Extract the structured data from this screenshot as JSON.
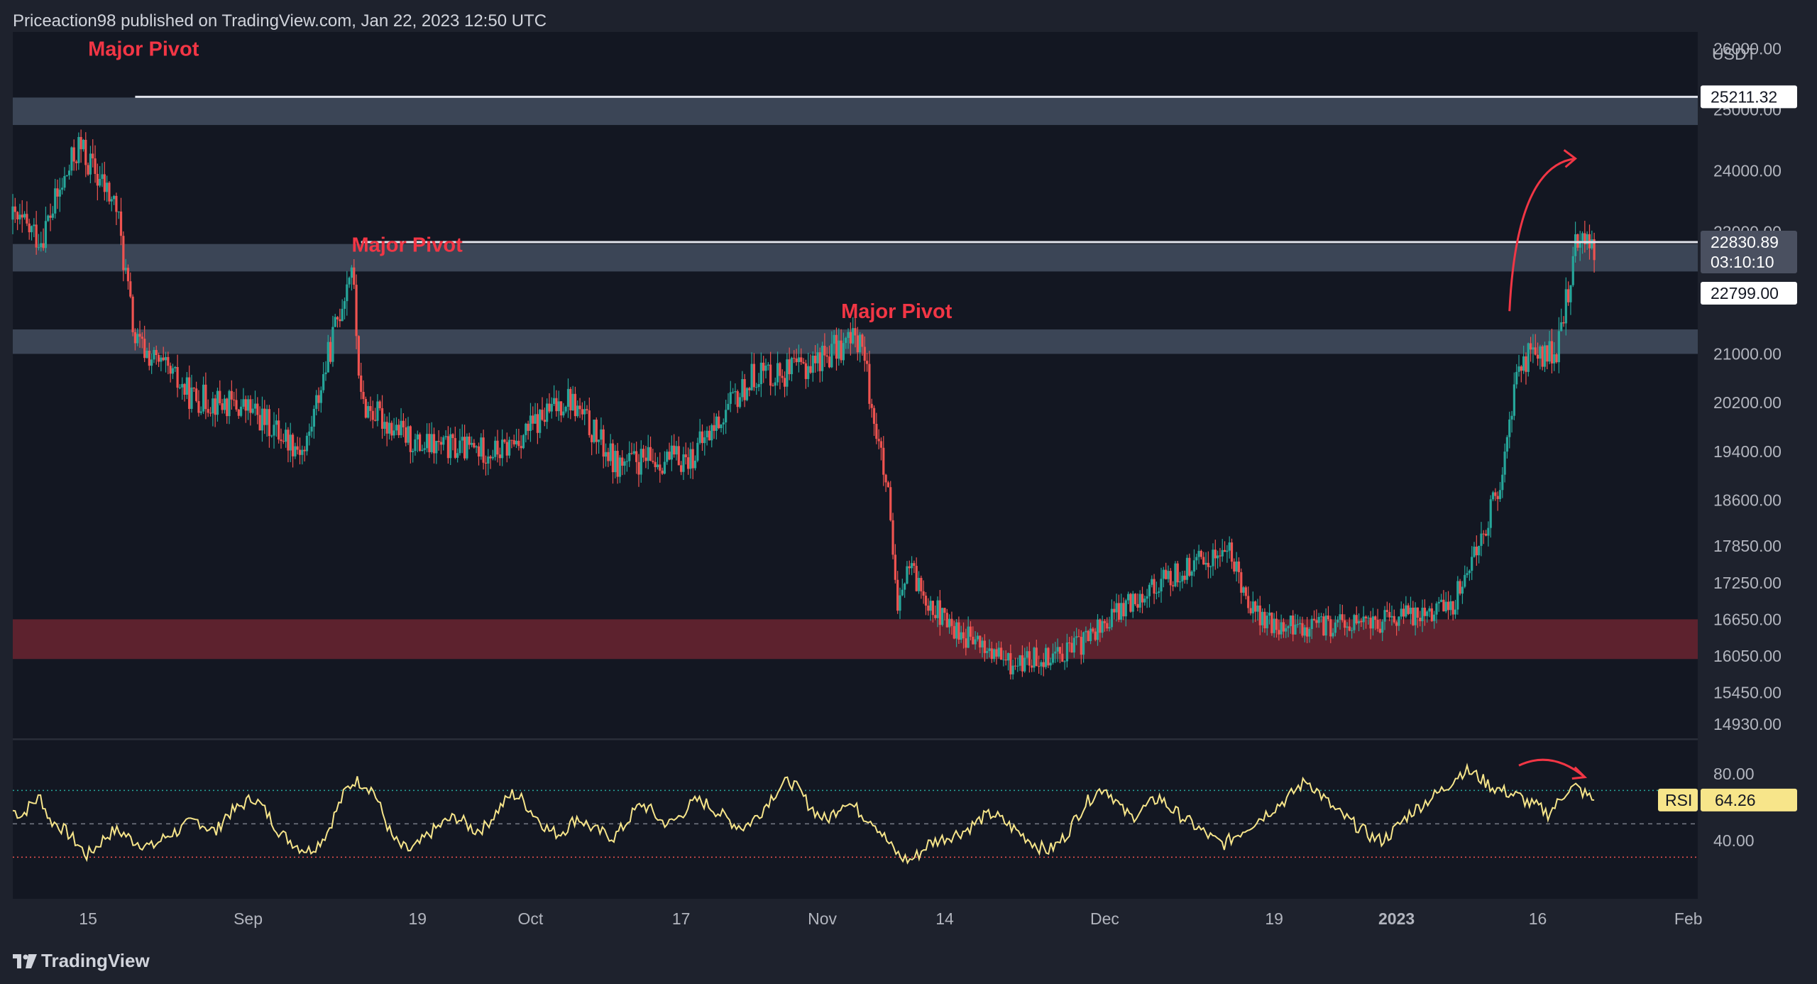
{
  "header": {
    "attribution": "Priceaction98 published on TradingView.com, Jan 22, 2023 12:50 UTC"
  },
  "footer": {
    "brand": "TradingView",
    "logo_icon": "tradingview-logo-icon"
  },
  "colors": {
    "background": "#1e222d",
    "pane_background": "#131722",
    "candle_up": "#26a69a",
    "candle_down": "#ef5350",
    "pivot_label": "#f23645",
    "resistance_zone": "#4a5568",
    "support_zone": "#6b2530",
    "rsi_line": "#f7e58a",
    "rsi_upper_band": "#26a69a",
    "rsi_lower_band": "#ef5350",
    "arrow": "#f23645"
  },
  "chart_data": {
    "type": "candlestick",
    "symbol_quote": "USDT",
    "price_axis": {
      "label": "USDT",
      "ticks": [
        26000,
        25000,
        24000,
        23000,
        21000,
        20200,
        19400,
        18600,
        17850,
        17250,
        16650,
        16050,
        15450,
        14930
      ],
      "tick_labels": [
        "26000.00",
        "25000.00",
        "24000.00",
        "23000.00",
        "21000.00",
        "20200.00",
        "19400.00",
        "18600.00",
        "17850.00",
        "17250.00",
        "16650.00",
        "16050.00",
        "15450.00",
        "14930.00"
      ],
      "range": [
        14700,
        26100
      ]
    },
    "time_axis": {
      "labels": [
        "15",
        "Sep",
        "19",
        "Oct",
        "17",
        "Nov",
        "14",
        "Dec",
        "19",
        "2023",
        "16",
        "Feb"
      ],
      "range": [
        "2022-08-07",
        "2023-02-02"
      ]
    },
    "ohlc_keypoints": {
      "description_dates": [
        "2022-08-07",
        "2022-08-10",
        "2022-08-14",
        "2022-08-18",
        "2022-08-20",
        "2022-08-26",
        "2022-09-01",
        "2022-09-07",
        "2022-09-12",
        "2022-09-13",
        "2022-09-19",
        "2022-09-28",
        "2022-10-05",
        "2022-10-10",
        "2022-10-18",
        "2022-10-25",
        "2022-10-29",
        "2022-11-05",
        "2022-11-08",
        "2022-11-09",
        "2022-11-10",
        "2022-11-14",
        "2022-11-21",
        "2022-11-28",
        "2022-12-05",
        "2022-12-14",
        "2022-12-17",
        "2022-12-19",
        "2022-12-30",
        "2023-01-07",
        "2023-01-12",
        "2023-01-14",
        "2023-01-18",
        "2023-01-20",
        "2023-01-21",
        "2023-01-22"
      ],
      "close": [
        23200,
        22900,
        24400,
        23400,
        21200,
        20300,
        20100,
        19400,
        22500,
        20200,
        19500,
        19400,
        20300,
        19200,
        19300,
        20700,
        20700,
        21300,
        18600,
        16700,
        17500,
        16600,
        15900,
        16200,
        17100,
        17800,
        16750,
        16500,
        16600,
        16900,
        18800,
        20900,
        21000,
        22700,
        23000,
        22799
      ]
    },
    "levels": [
      {
        "name": "Major Pivot",
        "price": 25211.32,
        "label_price": "25211.32",
        "zone": [
          24750,
          25200
        ]
      },
      {
        "name": "Major Pivot",
        "price": 22830.89,
        "label_price": "22830.89",
        "zone": [
          22350,
          22800
        ]
      },
      {
        "name": "Major Pivot",
        "price": 21400,
        "zone": [
          21000,
          21400
        ]
      }
    ],
    "support_zone": [
      16000,
      16650
    ],
    "last_price": "22799.00",
    "countdown": "03:10:10",
    "annotations": [
      "Major Pivot",
      "Major Pivot",
      "Major Pivot"
    ],
    "rsi": {
      "label": "RSI",
      "value": "64.26",
      "ticks": [
        "80.00",
        "40.00"
      ],
      "upper_band": 70,
      "mid": 50,
      "lower_band": 30,
      "range": [
        5,
        100
      ],
      "values": [
        58,
        55,
        62,
        66,
        52,
        49,
        44,
        38,
        31,
        36,
        42,
        46,
        44,
        40,
        38,
        36,
        40,
        44,
        46,
        50,
        52,
        48,
        45,
        55,
        58,
        62,
        66,
        60,
        52,
        44,
        40,
        36,
        34,
        38,
        45,
        58,
        70,
        76,
        74,
        70,
        56,
        42,
        36,
        34,
        38,
        44,
        48,
        52,
        54,
        50,
        46,
        48,
        55,
        62,
        68,
        65,
        58,
        52,
        46,
        44,
        48,
        54,
        50,
        46,
        44,
        42,
        48,
        56,
        62,
        58,
        52,
        50,
        54,
        60,
        64,
        62,
        58,
        54,
        50,
        48,
        52,
        58,
        66,
        72,
        76,
        70,
        62,
        56,
        52,
        58,
        64,
        60,
        55,
        52,
        44,
        36,
        30,
        28,
        32,
        38,
        40,
        42,
        44,
        46,
        50,
        54,
        56,
        52,
        48,
        44,
        40,
        36,
        34,
        38,
        44,
        54,
        62,
        68,
        72,
        66,
        58,
        54,
        58,
        62,
        66,
        60,
        56,
        52,
        48,
        44,
        40,
        38,
        42,
        46,
        50,
        54,
        58,
        62,
        66,
        72,
        76,
        70,
        64,
        58,
        54,
        50,
        46,
        42,
        40,
        44,
        50,
        56,
        60,
        64,
        68,
        72,
        78,
        82,
        80,
        76,
        72,
        70,
        68,
        66,
        62,
        60,
        56,
        62,
        70,
        72,
        68,
        64
      ]
    }
  }
}
